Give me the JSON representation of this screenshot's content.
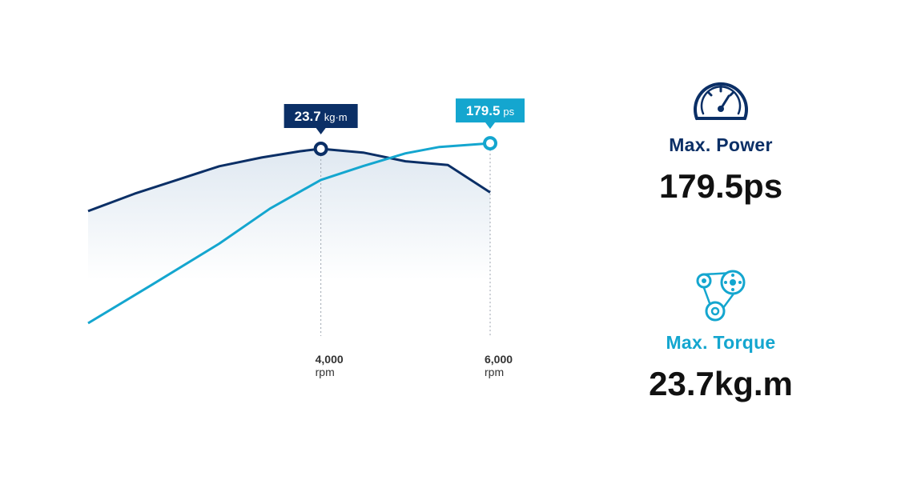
{
  "colors": {
    "torque": "#0b2f66",
    "power": "#14a6cf",
    "fill_top": "#dfe8f1",
    "guide": "#9aa3ad",
    "tick_text": "#333333"
  },
  "chart_data": {
    "type": "line",
    "x_unit": "rpm",
    "x_ticks": [
      {
        "value": 4000,
        "label": "4,000",
        "unit": "rpm"
      },
      {
        "value": 6000,
        "label": "6,000",
        "unit": "rpm"
      }
    ],
    "series": [
      {
        "key": "torque",
        "unit": "kg·m",
        "points": [
          [
            1250,
            18.7
          ],
          [
            1800,
            20.1
          ],
          [
            2300,
            21.2
          ],
          [
            2800,
            22.3
          ],
          [
            3300,
            23.0
          ],
          [
            3750,
            23.5
          ],
          [
            4000,
            23.7
          ],
          [
            4500,
            23.4
          ],
          [
            5000,
            22.7
          ],
          [
            5500,
            22.4
          ],
          [
            6000,
            20.2
          ]
        ],
        "peak": {
          "rpm": 4000,
          "value": 23.7,
          "value_label": "23.7",
          "unit_label": "kg·m"
        }
      },
      {
        "key": "power",
        "unit": "ps",
        "points": [
          [
            1250,
            10
          ],
          [
            2000,
            46
          ],
          [
            2800,
            85
          ],
          [
            3400,
            118
          ],
          [
            4000,
            145
          ],
          [
            4500,
            158
          ],
          [
            5000,
            170
          ],
          [
            5400,
            176
          ],
          [
            6000,
            179.5
          ]
        ],
        "peak": {
          "rpm": 6000,
          "value": 179.5,
          "value_label": "179.5",
          "unit_label": "ps"
        }
      }
    ],
    "grid": false,
    "legend": "none"
  },
  "panel": {
    "power": {
      "label": "Max. Power",
      "value": "179.5ps",
      "icon": "speedometer-icon"
    },
    "torque": {
      "label": "Max. Torque",
      "value": "23.7kg.m",
      "icon": "belt-pulley-icon"
    }
  }
}
